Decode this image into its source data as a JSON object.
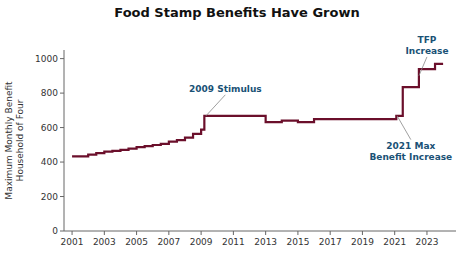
{
  "chart_data": {
    "type": "step",
    "title": "Food Stamp Benefits Have Grown",
    "ylabel": "Maximum Monthly Benefit\nHousehold of Four",
    "color": "#6B0F2B",
    "x": [
      2001,
      2002,
      2002.5,
      2003,
      2003.5,
      2004,
      2004.5,
      2005,
      2005.5,
      2006,
      2006.5,
      2007,
      2007.5,
      2008,
      2008.5,
      2009,
      2009.2,
      2009.5,
      2010,
      2010.5,
      2011,
      2011.5,
      2012,
      2012.5,
      2013,
      2013.5,
      2014,
      2014.5,
      2015,
      2015.5,
      2016,
      2016.5,
      2017,
      2017.5,
      2018,
      2018.5,
      2019,
      2019.5,
      2020,
      2020.5,
      2021,
      2021.1,
      2021.5,
      2021.75,
      2022,
      2022.25,
      2022.5,
      2022.75,
      2023,
      2023.25,
      2023.5,
      2024
    ],
    "values": [
      433,
      443,
      452,
      461,
      465,
      471,
      478,
      486,
      492,
      499,
      506,
      518,
      527,
      542,
      563,
      588,
      668,
      668,
      668,
      668,
      668,
      668,
      668,
      668,
      632,
      632,
      640,
      640,
      632,
      632,
      649,
      649,
      649,
      649,
      649,
      649,
      649,
      649,
      649,
      649,
      649,
      668,
      835,
      835,
      835,
      835,
      939,
      939,
      939,
      939,
      969,
      969
    ],
    "xlim": [
      2000.5,
      2024.8
    ],
    "ylim": [
      0,
      1050
    ],
    "xticks": [
      2001,
      2003,
      2005,
      2007,
      2009,
      2011,
      2013,
      2015,
      2017,
      2019,
      2021,
      2023
    ],
    "yticks": [
      0,
      200,
      400,
      600,
      800,
      1000
    ],
    "grid": false,
    "annotations": [
      {
        "text": "2009 Stimulus",
        "x": 2009.3,
        "y": 668,
        "text_x": 2010.5,
        "text_y": 790,
        "color": "#1a5276"
      },
      {
        "text": "2021 Max\nBenefit Increase",
        "x": 2021.15,
        "y": 668,
        "text_x": 2022.0,
        "text_y": 530,
        "color": "#1a5276"
      },
      {
        "text": "TFP\nIncrease",
        "x": 2022.5,
        "y": 900,
        "text_x": 2023.0,
        "text_y": 1010,
        "color": "#1a5276"
      }
    ]
  }
}
